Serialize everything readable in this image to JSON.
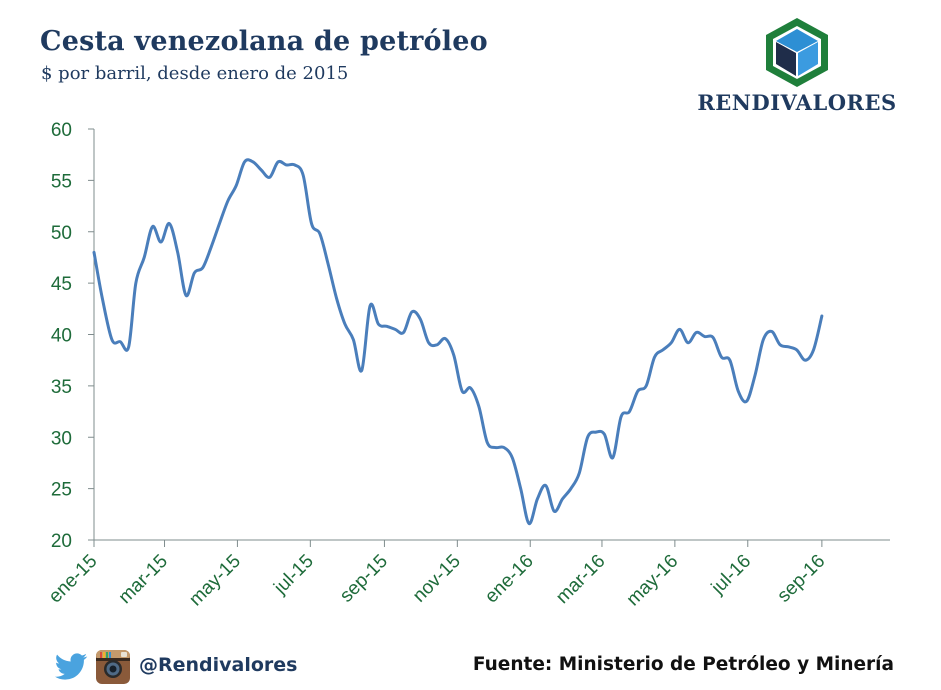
{
  "header": {
    "title": "Cesta venezolana de petróleo",
    "subtitle": "$ por barril, desde enero de 2015"
  },
  "brand": {
    "name": "RENDIVALORES"
  },
  "footer": {
    "handle": "@Rendivalores",
    "source": "Fuente: Ministerio de Petróleo y Minería"
  },
  "colors": {
    "line": "#4a7ebb",
    "axis_text": "#1e6b3a",
    "title": "#1f3a5f"
  },
  "icons": [
    "twitter-icon",
    "instagram-icon",
    "cube-logo-icon"
  ],
  "chart_data": {
    "type": "line",
    "title": "Cesta venezolana de petróleo",
    "subtitle": "$ por barril, desde enero de 2015",
    "xlabel": "",
    "ylabel": "",
    "ylim": [
      20,
      60
    ],
    "yticks": [
      20,
      25,
      30,
      35,
      40,
      45,
      50,
      55,
      60
    ],
    "xlim": [
      "2015-01-01",
      "2016-10-28"
    ],
    "xticks": [
      {
        "label": "ene-15",
        "date": "2015-01-01"
      },
      {
        "label": "mar-15",
        "date": "2015-03-01"
      },
      {
        "label": "may-15",
        "date": "2015-05-01"
      },
      {
        "label": "jul-15",
        "date": "2015-07-01"
      },
      {
        "label": "sep-15",
        "date": "2015-09-01"
      },
      {
        "label": "nov-15",
        "date": "2015-11-01"
      },
      {
        "label": "ene-16",
        "date": "2016-01-01"
      },
      {
        "label": "mar-16",
        "date": "2016-03-01"
      },
      {
        "label": "may-16",
        "date": "2016-05-01"
      },
      {
        "label": "jul-16",
        "date": "2016-07-01"
      },
      {
        "label": "sep-16",
        "date": "2016-09-01"
      }
    ],
    "grid": false,
    "series": [
      {
        "values": [
          [
            "2015-01-01",
            48.0
          ],
          [
            "2015-01-08",
            43.5
          ],
          [
            "2015-01-16",
            39.5
          ],
          [
            "2015-01-23",
            39.3
          ],
          [
            "2015-01-30",
            38.8
          ],
          [
            "2015-02-05",
            45.0
          ],
          [
            "2015-02-12",
            47.5
          ],
          [
            "2015-02-19",
            50.5
          ],
          [
            "2015-02-26",
            49.0
          ],
          [
            "2015-03-05",
            50.8
          ],
          [
            "2015-03-12",
            48.0
          ],
          [
            "2015-03-19",
            43.8
          ],
          [
            "2015-03-26",
            46.0
          ],
          [
            "2015-04-02",
            46.5
          ],
          [
            "2015-04-09",
            48.5
          ],
          [
            "2015-04-16",
            50.8
          ],
          [
            "2015-04-23",
            53.0
          ],
          [
            "2015-04-30",
            54.5
          ],
          [
            "2015-05-07",
            56.8
          ],
          [
            "2015-05-14",
            56.8
          ],
          [
            "2015-05-21",
            56.0
          ],
          [
            "2015-05-28",
            55.3
          ],
          [
            "2015-06-04",
            56.8
          ],
          [
            "2015-06-11",
            56.5
          ],
          [
            "2015-06-18",
            56.5
          ],
          [
            "2015-06-25",
            55.5
          ],
          [
            "2015-07-02",
            50.8
          ],
          [
            "2015-07-09",
            49.8
          ],
          [
            "2015-07-16",
            46.8
          ],
          [
            "2015-07-23",
            43.5
          ],
          [
            "2015-07-30",
            41.0
          ],
          [
            "2015-08-06",
            39.5
          ],
          [
            "2015-08-13",
            36.5
          ],
          [
            "2015-08-20",
            42.8
          ],
          [
            "2015-08-27",
            41.0
          ],
          [
            "2015-09-03",
            40.8
          ],
          [
            "2015-09-10",
            40.5
          ],
          [
            "2015-09-17",
            40.2
          ],
          [
            "2015-09-24",
            42.2
          ],
          [
            "2015-10-01",
            41.5
          ],
          [
            "2015-10-08",
            39.2
          ],
          [
            "2015-10-15",
            39.0
          ],
          [
            "2015-10-22",
            39.6
          ],
          [
            "2015-10-29",
            38.0
          ],
          [
            "2015-11-05",
            34.5
          ],
          [
            "2015-11-12",
            34.8
          ],
          [
            "2015-11-19",
            33.0
          ],
          [
            "2015-11-26",
            29.5
          ],
          [
            "2015-12-03",
            29.0
          ],
          [
            "2015-12-10",
            29.0
          ],
          [
            "2015-12-17",
            28.0
          ],
          [
            "2015-12-24",
            25.0
          ],
          [
            "2015-12-31",
            21.6
          ],
          [
            "2016-01-07",
            24.0
          ],
          [
            "2016-01-14",
            25.3
          ],
          [
            "2016-01-21",
            22.8
          ],
          [
            "2016-01-28",
            24.0
          ],
          [
            "2016-02-04",
            25.0
          ],
          [
            "2016-02-11",
            26.5
          ],
          [
            "2016-02-18",
            30.0
          ],
          [
            "2016-02-25",
            30.5
          ],
          [
            "2016-03-03",
            30.3
          ],
          [
            "2016-03-10",
            28.0
          ],
          [
            "2016-03-17",
            32.0
          ],
          [
            "2016-03-24",
            32.5
          ],
          [
            "2016-03-31",
            34.5
          ],
          [
            "2016-04-07",
            35.0
          ],
          [
            "2016-04-14",
            37.8
          ],
          [
            "2016-04-21",
            38.5
          ],
          [
            "2016-04-28",
            39.2
          ],
          [
            "2016-05-05",
            40.5
          ],
          [
            "2016-05-12",
            39.2
          ],
          [
            "2016-05-19",
            40.2
          ],
          [
            "2016-05-26",
            39.8
          ],
          [
            "2016-06-02",
            39.7
          ],
          [
            "2016-06-09",
            37.8
          ],
          [
            "2016-06-16",
            37.5
          ],
          [
            "2016-06-23",
            34.5
          ],
          [
            "2016-06-30",
            33.5
          ],
          [
            "2016-07-07",
            36.0
          ],
          [
            "2016-07-14",
            39.5
          ],
          [
            "2016-07-21",
            40.3
          ],
          [
            "2016-07-28",
            39.0
          ],
          [
            "2016-08-04",
            38.8
          ],
          [
            "2016-08-11",
            38.5
          ],
          [
            "2016-08-18",
            37.5
          ],
          [
            "2016-08-25",
            38.5
          ],
          [
            "2016-09-01",
            41.8
          ]
        ]
      }
    ]
  }
}
